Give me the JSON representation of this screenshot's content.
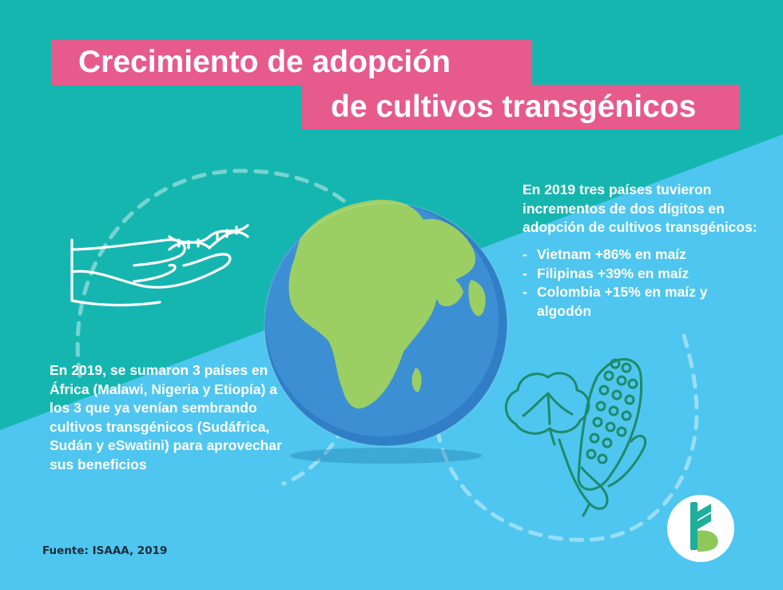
{
  "title": {
    "line1": "Crecimiento de adopción",
    "line2": "de cultivos transgénicos"
  },
  "left_text": "En 2019, se sumaron 3 países en África (Malawi, Nigeria y Etiopía) a los 3 que ya venían sembrando cultivos transgénicos (Sudáfrica, Sudán y eSwatini) para aprovechar sus beneficios",
  "right_text": {
    "intro": "En 2019 tres países tuvieron incrementos de dos dígitos en adopción de cultivos transgénicos:",
    "items": [
      "Vietnam +86% en maíz",
      "Filipinas +39% en maíz",
      "Colombia +15% en maíz y algodón"
    ],
    "bullet": "-"
  },
  "source": "Fuente: ISAAA, 2019",
  "colors": {
    "teal": "#16b6b0",
    "sky": "#4ec6ef",
    "pink": "#e75a8c",
    "ocean": "#3d8fd3",
    "land": "#9ccf63",
    "crop_line": "#1f8a6a"
  },
  "icons": [
    "dna-icon",
    "hand-icon",
    "globe-icon",
    "cotton-icon",
    "corn-icon",
    "logo-icon"
  ]
}
